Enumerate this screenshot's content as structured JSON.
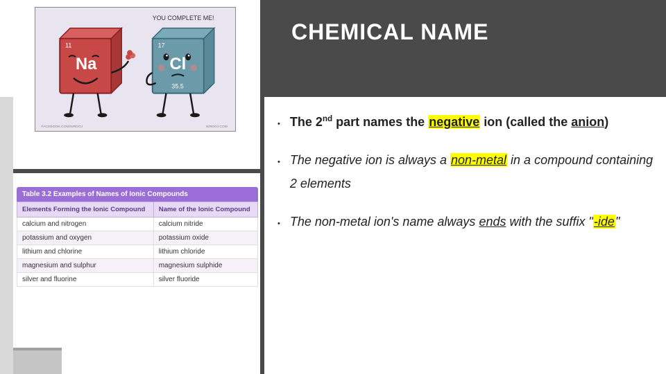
{
  "title": "CHEMICAL NAME",
  "cartoon": {
    "speech": "YOU COMPLETE ME!",
    "na": {
      "symbol": "Na",
      "num": "11",
      "color": "#c84848",
      "face_color": "#1a1a1a"
    },
    "cl": {
      "symbol": "Cl",
      "num": "17",
      "mass": "35.5",
      "color": "#6b9ba8",
      "face_color": "#1a1a1a"
    },
    "bg": "#e8e4f0"
  },
  "bullets": [
    {
      "parts": [
        {
          "t": "The 2",
          "cls": "bold"
        },
        {
          "t": "nd",
          "cls": "bold",
          "sup": true
        },
        {
          "t": " part names the ",
          "cls": "bold"
        },
        {
          "t": "negative",
          "cls": "bold under hl"
        },
        {
          "t": " ion (called the ",
          "cls": "bold"
        },
        {
          "t": "anion",
          "cls": "bold under"
        },
        {
          "t": ")",
          "cls": "bold"
        }
      ],
      "italic": false
    },
    {
      "parts": [
        {
          "t": "The negative ion is always a "
        },
        {
          "t": "non-metal",
          "cls": "under hl"
        },
        {
          "t": " in a compound containing 2 elements"
        }
      ],
      "italic": true
    },
    {
      "parts": [
        {
          "t": "The non-metal ion's name always "
        },
        {
          "t": "ends",
          "cls": "under"
        },
        {
          "t": " with the suffix \""
        },
        {
          "t": "-ide",
          "cls": "under hl"
        },
        {
          "t": "\""
        }
      ],
      "italic": true
    }
  ],
  "table": {
    "caption": "Table 3.2  Examples of Names of Ionic Compounds",
    "columns": [
      "Elements Forming the Ionic Compound",
      "Name of the Ionic Compound"
    ],
    "rows": [
      [
        "calcium and nitrogen",
        "calcium nitride"
      ],
      [
        "potassium and oxygen",
        "potassium oxide"
      ],
      [
        "lithium and chlorine",
        "lithium chloride"
      ],
      [
        "magnesium and sulphur",
        "magnesium sulphide"
      ],
      [
        "silver and fluorine",
        "silver fluoride"
      ]
    ],
    "header_bg": "#9b6dd7",
    "th_bg": "#e8d9f5"
  }
}
